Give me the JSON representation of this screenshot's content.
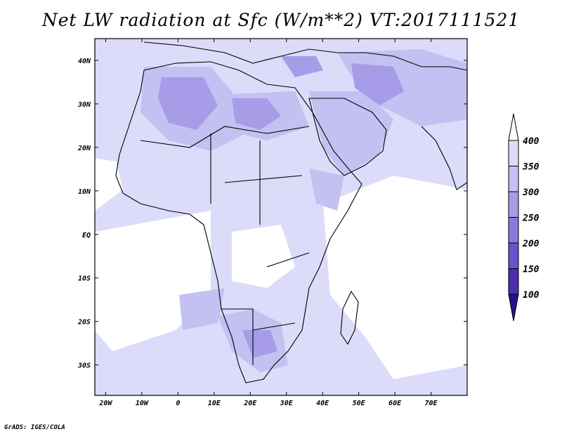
{
  "title": "Net LW radiation at Sfc (W/m**2) VT:2017111521",
  "credit": "GrADS: IGES/COLA",
  "map": {
    "lon_range": [
      -23,
      80
    ],
    "lat_range": [
      -37,
      45
    ],
    "lon_ticks": [
      {
        "value": -20,
        "label": "20W"
      },
      {
        "value": -10,
        "label": "10W"
      },
      {
        "value": 0,
        "label": "0"
      },
      {
        "value": 10,
        "label": "10E"
      },
      {
        "value": 20,
        "label": "20E"
      },
      {
        "value": 30,
        "label": "30E"
      },
      {
        "value": 40,
        "label": "40E"
      },
      {
        "value": 50,
        "label": "50E"
      },
      {
        "value": 60,
        "label": "60E"
      },
      {
        "value": 70,
        "label": "70E"
      }
    ],
    "lat_ticks": [
      {
        "value": 40,
        "label": "40N"
      },
      {
        "value": 30,
        "label": "30N"
      },
      {
        "value": 20,
        "label": "20N"
      },
      {
        "value": 10,
        "label": "10N"
      },
      {
        "value": 0,
        "label": "EQ"
      },
      {
        "value": -10,
        "label": "10S"
      },
      {
        "value": -20,
        "label": "20S"
      },
      {
        "value": -30,
        "label": "30S"
      }
    ]
  },
  "colorbar": {
    "labels": [
      "400",
      "350",
      "300",
      "250",
      "200",
      "150",
      "100"
    ],
    "colors": [
      "#ffffff",
      "#dcdcfa",
      "#c4c0f2",
      "#a79ce8",
      "#8b78da",
      "#6b52c8",
      "#4a2db0",
      "#2a0f90"
    ]
  }
}
